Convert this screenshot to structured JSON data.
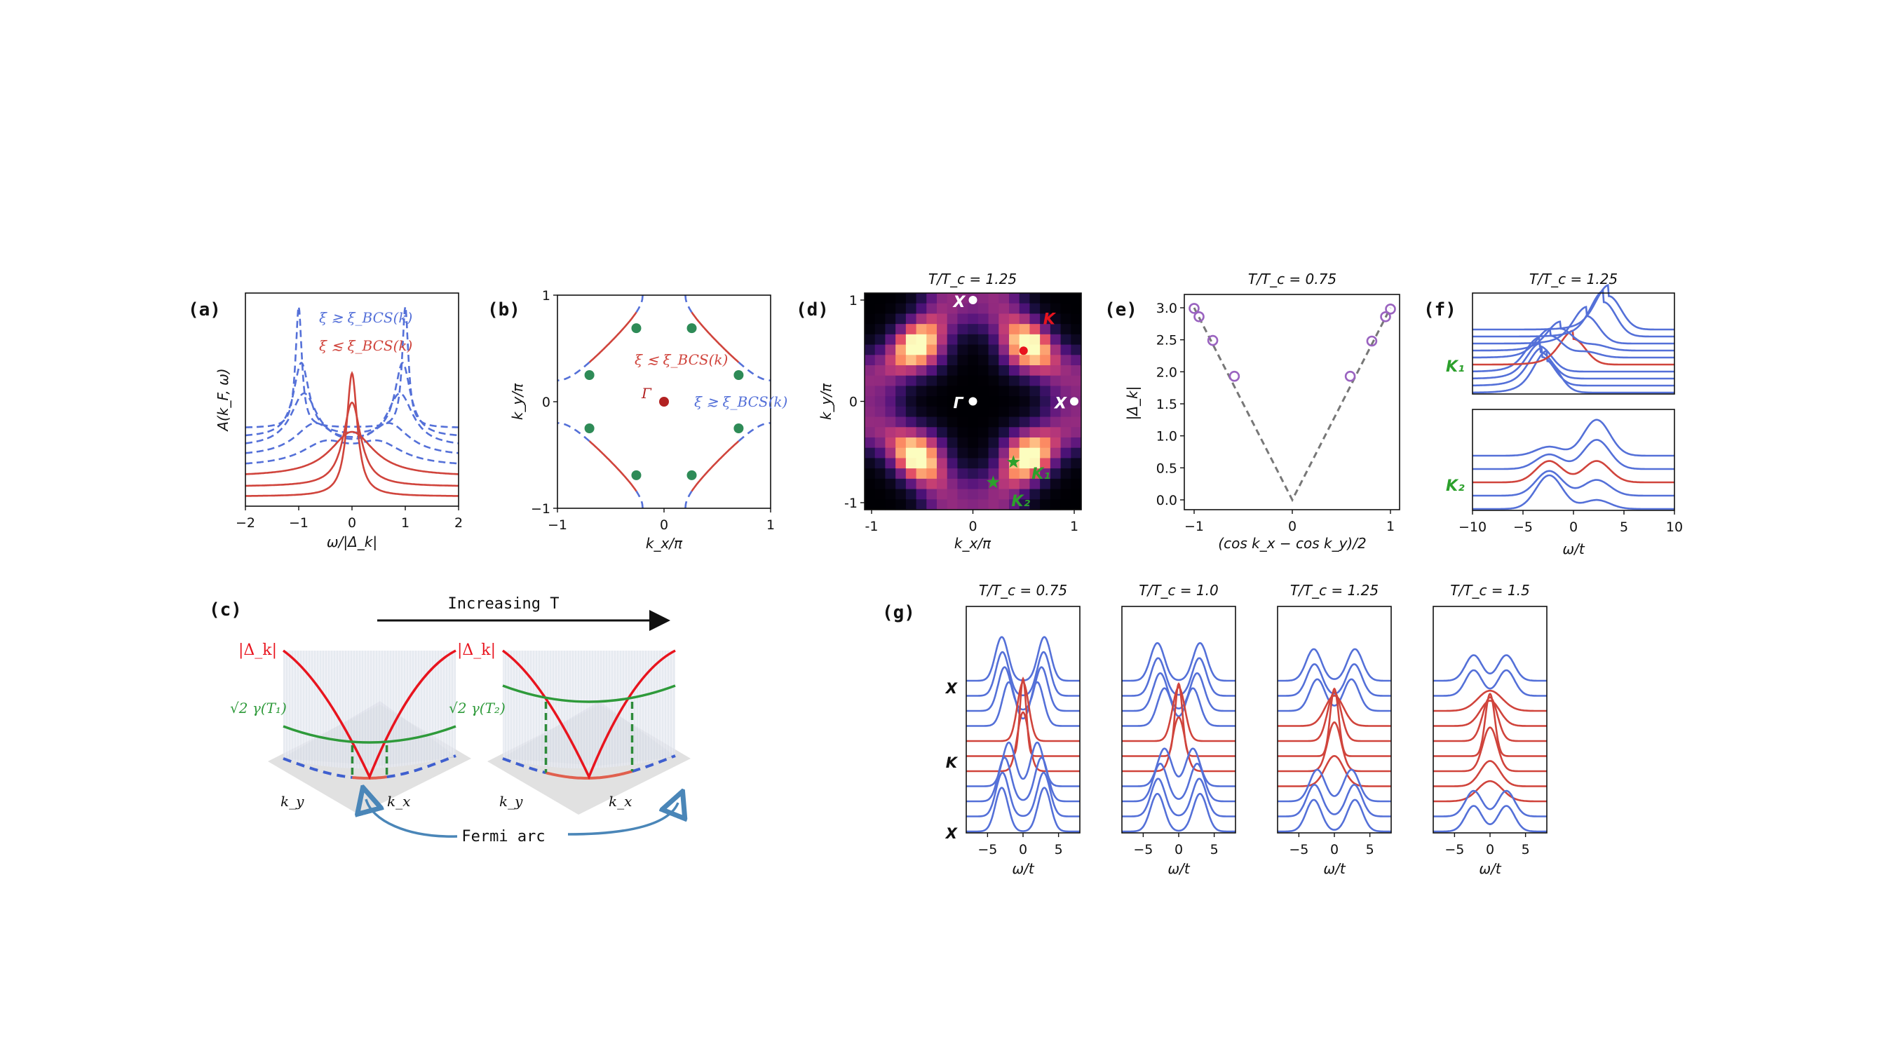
{
  "figure": {
    "panel_labels": {
      "a": "(a)",
      "b": "(b)",
      "c": "(c)",
      "d": "(d)",
      "e": "(e)",
      "f": "(f)",
      "g": "(g)"
    },
    "colors": {
      "blue": "#5470d8",
      "red": "#d0443c",
      "green": "#2e8b57",
      "bright_red": "#e8141e",
      "purple": "#9a63c0",
      "gray": "#777777",
      "black": "#111111",
      "star_green": "#2ca02c"
    }
  },
  "chart_data": [
    {
      "id": "a",
      "type": "line",
      "title": "",
      "xlabel": "ω/|Δ_k|",
      "ylabel": "A(k_F, ω)",
      "xlim": [
        -2,
        2
      ],
      "xticks": [
        "−2",
        "−1",
        "0",
        "1",
        "2"
      ],
      "annotations": [
        {
          "text": "ξ ≳ ξ_BCS(k)",
          "color": "blue"
        },
        {
          "text": "ξ ≲ ξ_BCS(k)",
          "color": "red"
        }
      ],
      "series": [
        {
          "name": "ξ ≳ ξ_BCS(k)",
          "style": "dashed",
          "color": "blue",
          "offset": 4.0,
          "peaks": [
            -1.0,
            1.0
          ],
          "width": 0.07,
          "height": 6.2
        },
        {
          "name": "ξ ≳ ξ_BCS(k)",
          "style": "dashed",
          "color": "blue",
          "offset": 3.5,
          "peaks": [
            -0.95,
            0.95
          ],
          "width": 0.18,
          "height": 3.8
        },
        {
          "name": "ξ ≳ ξ_BCS(k)",
          "style": "dashed",
          "color": "blue",
          "offset": 3.0,
          "peaks": [
            -0.9,
            0.9
          ],
          "width": 0.3,
          "height": 2.7
        },
        {
          "name": "ξ ≳ ξ_BCS(k)",
          "style": "dashed",
          "color": "blue",
          "offset": 2.5,
          "peaks": [
            -0.7,
            0.7
          ],
          "width": 0.45,
          "height": 1.6
        },
        {
          "name": "ξ ≳ ξ_BCS(k)",
          "style": "dashed",
          "color": "blue",
          "offset": 2.0,
          "peaks": [
            -0.5,
            0.5
          ],
          "width": 0.55,
          "height": 1.1
        },
        {
          "name": "ξ ≲ ξ_BCS(k)",
          "style": "solid",
          "color": "red",
          "offset": 1.5,
          "peaks": [
            0
          ],
          "width": 0.5,
          "height": 2.3
        },
        {
          "name": "ξ ≲ ξ_BCS(k)",
          "style": "solid",
          "color": "red",
          "offset": 1.0,
          "peaks": [
            0
          ],
          "width": 0.2,
          "height": 4.3
        },
        {
          "name": "ξ ≲ ξ_BCS(k)",
          "style": "solid",
          "color": "red",
          "offset": 0.5,
          "peaks": [
            0
          ],
          "width": 0.12,
          "height": 6.3
        }
      ]
    },
    {
      "id": "b",
      "type": "line",
      "title": "",
      "xlabel": "k_x/π",
      "ylabel": "k_y/π",
      "xlim": [
        -1,
        1
      ],
      "ylim": [
        -1,
        1
      ],
      "xticks": [
        "−1",
        "0",
        "1"
      ],
      "yticks": [
        "−1",
        "0",
        "1"
      ],
      "fermi_surface_edge_crossing": 0.2,
      "arc_endpoints": [
        [
          0.26,
          0.69
        ],
        [
          0.7,
          0.25
        ],
        [
          -0.26,
          0.69
        ],
        [
          -0.7,
          0.25
        ],
        [
          0.26,
          -0.69
        ],
        [
          0.7,
          -0.25
        ],
        [
          -0.26,
          -0.69
        ],
        [
          -0.7,
          -0.25
        ]
      ],
      "gamma_point": [
        0,
        0
      ],
      "labels": {
        "gamma": "Γ",
        "arc": "ξ ≲ ξ_BCS(k)",
        "gapped": "ξ ≳ ξ_BCS(k)"
      }
    },
    {
      "id": "d",
      "type": "heatmap",
      "title": "T/T_c = 1.25",
      "xlabel": "k_x/π",
      "ylabel": "k_y/π",
      "xlim": [
        -1,
        1
      ],
      "ylim": [
        -1,
        1
      ],
      "xticks": [
        "-1",
        "0",
        "1"
      ],
      "yticks": [
        "-1",
        "0",
        "1"
      ],
      "grid_size": 21,
      "colormap": "magma",
      "hotspots": [
        [
          -0.5,
          0.5
        ],
        [
          0.5,
          0.5
        ],
        [
          -0.5,
          -0.5
        ],
        [
          0.5,
          -0.5
        ]
      ],
      "markers": [
        {
          "label": "Γ",
          "k": [
            0,
            0
          ],
          "color": "#ffffff"
        },
        {
          "label": "X",
          "k": [
            0,
            1
          ],
          "color": "#ffffff"
        },
        {
          "label": "X",
          "k": [
            1,
            0
          ],
          "color": "#ffffff"
        },
        {
          "label": "K",
          "k": [
            0.5,
            0.5
          ],
          "color": "#e8141e"
        },
        {
          "label": "K1",
          "k": [
            0.4,
            -0.6
          ],
          "color": "#2ca02c",
          "shape": "star"
        },
        {
          "label": "K2",
          "k": [
            0.2,
            -0.8
          ],
          "color": "#2ca02c",
          "shape": "star"
        }
      ]
    },
    {
      "id": "e",
      "type": "scatter",
      "title": "T/T_c = 0.75",
      "xlabel": "(cos k_x − cos k_y)/2",
      "ylabel": "|Δ_k|",
      "xlim": [
        -1.1,
        1.1
      ],
      "ylim": [
        -0.1,
        3.2
      ],
      "xticks": [
        "−1",
        "0",
        "1"
      ],
      "yticks": [
        "0.0",
        "0.5",
        "1.0",
        "1.5",
        "2.0",
        "2.5",
        "3.0"
      ],
      "points": {
        "x": [
          -1.0,
          -0.95,
          -0.81,
          -0.59,
          0.59,
          0.81,
          0.95,
          1.0
        ],
        "y": [
          2.99,
          2.86,
          2.49,
          1.93,
          1.93,
          2.48,
          2.86,
          2.98
        ]
      },
      "fit_line": {
        "style": "dashed",
        "slope": 3.0,
        "form": "3|x|"
      }
    },
    {
      "id": "f",
      "type": "line",
      "title": "T/T_c = 1.25",
      "xlabel": "ω/t",
      "xlim": [
        -10,
        10
      ],
      "xticks": [
        "−10",
        "−5",
        "0",
        "5",
        "10"
      ],
      "subplots": [
        {
          "name": "K1",
          "label": "K₁",
          "traces": [
            {
              "color": "blue",
              "peak": -2.6,
              "amp": 3.2
            },
            {
              "color": "blue",
              "peak": -3.1,
              "amp": 2.9
            },
            {
              "color": "blue",
              "peak": -3.3,
              "amp": 2.7
            },
            {
              "color": "blue",
              "peak": -3.4,
              "amp": 2.6
            },
            {
              "color": "red",
              "peak": 0.0,
              "amp": 2.6
            },
            {
              "color": "blue",
              "peak": -2.3,
              "amp": 2.2,
              "peak2": 1.2
            },
            {
              "color": "blue",
              "peak": -1.3,
              "amp": 2.2,
              "peak2": 2.0
            },
            {
              "color": "blue",
              "peak": 1.3,
              "amp": 2.8
            },
            {
              "color": "blue",
              "peak": 3.0,
              "amp": 3.5
            },
            {
              "color": "blue",
              "peak": 3.5,
              "amp": 3.4
            }
          ]
        },
        {
          "name": "K2",
          "label": "K₂",
          "traces": [
            {
              "color": "blue",
              "peaks": [
                -2.4,
                2.3
              ],
              "amps": [
                3.0,
                0.8
              ]
            },
            {
              "color": "blue",
              "peaks": [
                -2.4,
                2.3
              ],
              "amps": [
                2.2,
                1.4
              ]
            },
            {
              "color": "red",
              "peaks": [
                -2.4,
                2.3
              ],
              "amps": [
                1.9,
                1.9
              ]
            },
            {
              "color": "blue",
              "peaks": [
                -2.4,
                2.3
              ],
              "amps": [
                1.3,
                2.6
              ]
            },
            {
              "color": "blue",
              "peaks": [
                -2.4,
                2.3
              ],
              "amps": [
                0.8,
                3.2
              ]
            }
          ]
        }
      ]
    },
    {
      "id": "g",
      "type": "line",
      "xlabel": "ω/t",
      "xlim": [
        -8,
        8
      ],
      "xticks": [
        "−5",
        "0",
        "5"
      ],
      "row_labels": [
        "X",
        "K",
        "X"
      ],
      "panels": [
        {
          "title": "T/T_c = 0.75",
          "red_rows": [
            5,
            6,
            7
          ],
          "gap": [
            3.0,
            2.9,
            2.6,
            2.0,
            0,
            0,
            0,
            2.0,
            2.6,
            2.9,
            3.0
          ]
        },
        {
          "title": "T/T_c = 1.0",
          "red_rows": [
            5,
            6,
            7
          ],
          "gap": [
            3.0,
            2.9,
            2.6,
            2.0,
            0,
            0,
            0,
            2.0,
            2.6,
            2.9,
            3.0
          ]
        },
        {
          "title": "T/T_c = 1.25",
          "red_rows": [
            4,
            5,
            6,
            7,
            8
          ],
          "gap": [
            2.9,
            2.8,
            2.4,
            0,
            0,
            0,
            0,
            0,
            2.4,
            2.8,
            2.9
          ]
        },
        {
          "title": "T/T_c = 1.5",
          "red_rows": [
            3,
            4,
            5,
            6,
            7,
            8,
            9
          ],
          "gap": [
            2.3,
            2.3,
            0,
            0,
            0,
            0,
            0,
            0,
            0,
            2.3,
            2.3
          ]
        }
      ]
    }
  ],
  "panel_c": {
    "arrow_label": "Increasing T",
    "gap_label": "|Δ_k|",
    "gamma_label_1": "√2 γ(T₁)",
    "gamma_label_2": "√2 γ(T₂)",
    "ky_label": "k_y",
    "kx_label": "k_x",
    "fermi_arc_label": "Fermi arc"
  }
}
